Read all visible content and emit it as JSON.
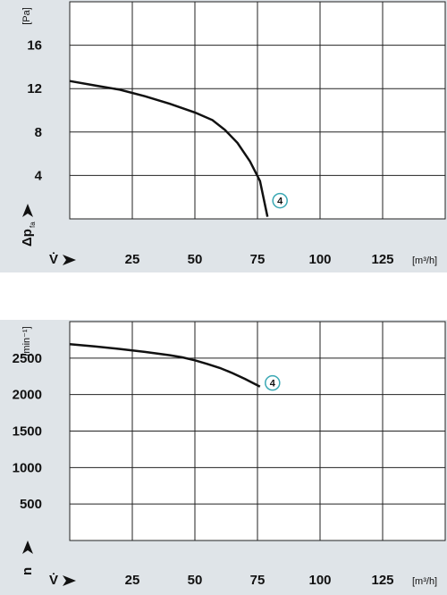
{
  "chart_data": [
    {
      "type": "line",
      "y_unit": "[Pa]",
      "y_label": "Δp",
      "y_label_sub": "fa",
      "x_label": "V̇",
      "x_unit": "[m³/h]",
      "x": [
        0,
        10,
        20,
        30,
        40,
        50,
        57,
        62,
        67,
        72,
        76,
        79
      ],
      "series": [
        {
          "curve_label": "4",
          "color": "#111111",
          "label_color": "#3aa8b4",
          "values": [
            12.7,
            12.3,
            11.9,
            11.3,
            10.6,
            9.8,
            9.1,
            8.2,
            7.0,
            5.3,
            3.5,
            0.2
          ]
        }
      ],
      "xlim": [
        0,
        150
      ],
      "xticks": [
        25,
        50,
        75,
        100,
        125
      ],
      "ylim": [
        0,
        20
      ],
      "yticks": [
        4,
        8,
        12,
        16
      ],
      "grid": true
    },
    {
      "type": "line",
      "y_unit": "[min⁻¹]",
      "y_label": "n",
      "x_label": "V̇",
      "x_unit": "[m³/h]",
      "x": [
        0,
        10,
        20,
        30,
        40,
        45,
        50,
        55,
        60,
        65,
        70,
        76
      ],
      "series": [
        {
          "curve_label": "4",
          "color": "#111111",
          "label_color": "#3aa8b4",
          "values": [
            2690,
            2660,
            2625,
            2585,
            2540,
            2510,
            2470,
            2420,
            2365,
            2295,
            2215,
            2110
          ]
        }
      ],
      "xlim": [
        0,
        150
      ],
      "xticks": [
        25,
        50,
        75,
        100,
        125
      ],
      "ylim": [
        0,
        3000
      ],
      "yticks": [
        500,
        1000,
        1500,
        2000,
        2500
      ],
      "grid": true
    }
  ]
}
